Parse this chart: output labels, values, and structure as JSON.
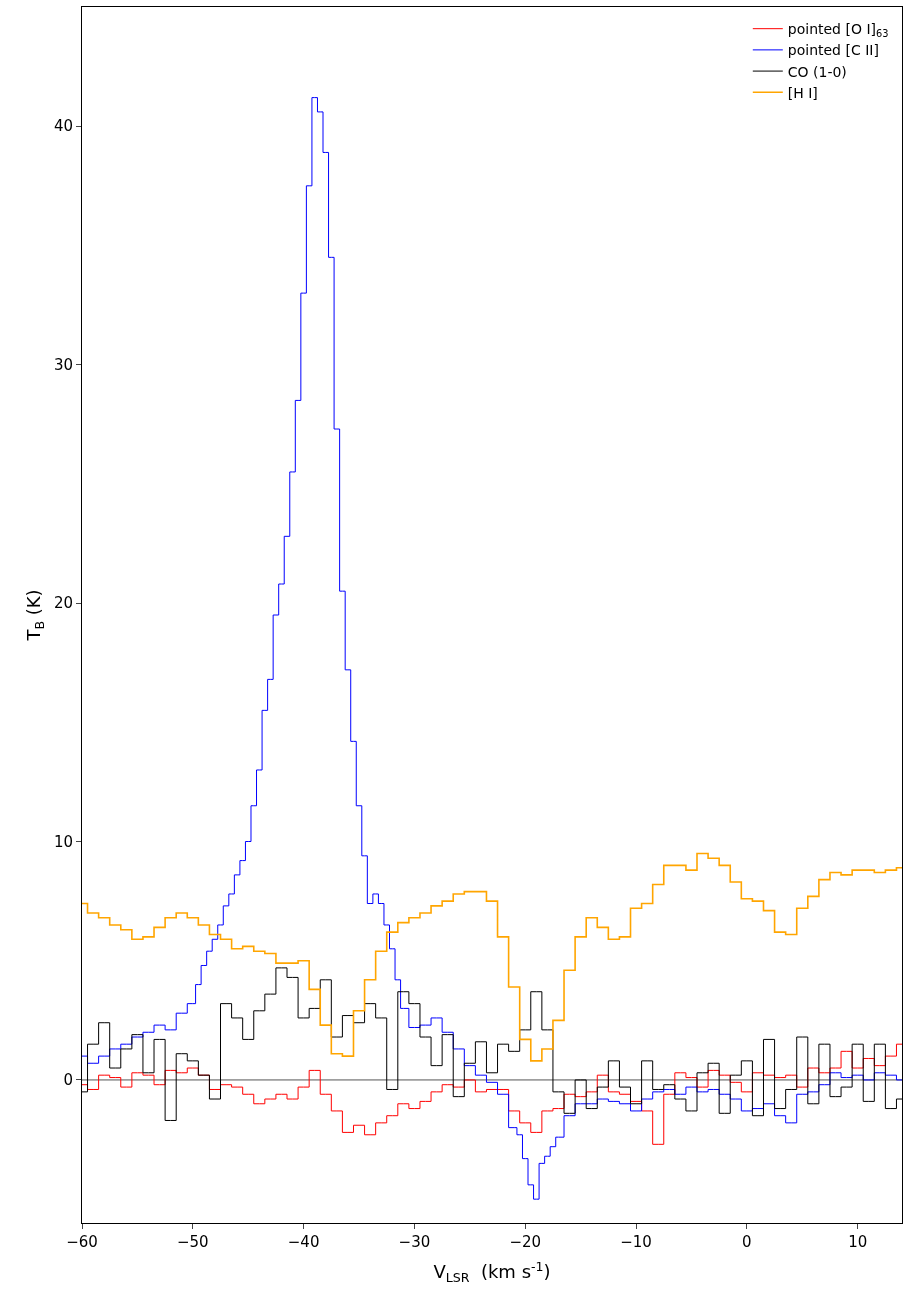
{
  "chart_data": {
    "type": "step",
    "xlabel": "V$_{LSR}$  (km s$^{-1}$)",
    "ylabel": "T$_{B}$ (K)",
    "xlim": [
      -60,
      14
    ],
    "ylim": [
      -6,
      45
    ],
    "xticks": [
      -60,
      -50,
      -40,
      -30,
      -20,
      -10,
      0,
      10
    ],
    "yticks": [
      0,
      10,
      20,
      30,
      40
    ],
    "grid": false,
    "legend": "top right",
    "marker": "none",
    "line_style": "solid",
    "ref_lines": [
      {
        "axis": "y",
        "value": 0,
        "label": null,
        "color": "#555555"
      }
    ],
    "series": [
      {
        "name": "pointed [O I]$_{63}$",
        "color": "#ff0000",
        "x": [
          -60,
          -59,
          -58,
          -57,
          -56,
          -55,
          -54,
          -53,
          -52,
          -51,
          -50,
          -49,
          -48,
          -47,
          -46,
          -45,
          -44,
          -43,
          -42,
          -41,
          -40,
          -39,
          -38,
          -37,
          -36,
          -35,
          -34,
          -33,
          -32,
          -31,
          -30,
          -29,
          -28,
          -27,
          -26,
          -25,
          -24,
          -23,
          -22,
          -21,
          -20,
          -19,
          -18,
          -17,
          -16,
          -15,
          -14,
          -13,
          -12,
          -11,
          -10,
          -9,
          -8,
          -7,
          -6,
          -5,
          -4,
          -3,
          -2,
          -1,
          0,
          1,
          2,
          3,
          4,
          5,
          6,
          7,
          8,
          9,
          10,
          11,
          12,
          13,
          14
        ],
        "values": [
          -0.2,
          -0.4,
          0.2,
          0.1,
          -0.3,
          0.3,
          0.2,
          -0.2,
          0.4,
          0.3,
          0.5,
          0.2,
          -0.4,
          -0.2,
          -0.3,
          -0.6,
          -1.0,
          -0.8,
          -0.6,
          -0.8,
          -0.3,
          0.4,
          -0.6,
          -1.3,
          -2.2,
          -1.9,
          -2.3,
          -1.8,
          -1.5,
          -1.0,
          -1.2,
          -0.9,
          -0.5,
          -0.2,
          -0.3,
          0.0,
          -0.5,
          -0.4,
          -0.4,
          -1.3,
          -1.8,
          -2.2,
          -1.3,
          -1.2,
          -0.6,
          -0.7,
          -0.5,
          0.2,
          -0.5,
          -0.6,
          -0.9,
          -1.3,
          -2.7,
          -0.6,
          0.3,
          0.1,
          -0.3,
          0.4,
          0.2,
          -0.1,
          -0.5,
          0.3,
          0.2,
          0.1,
          0.2,
          -0.3,
          0.5,
          0.3,
          0.5,
          1.2,
          0.5,
          0.9,
          0.6,
          1.0,
          1.5
        ]
      },
      {
        "name": "pointed [C II]",
        "color": "#0000ff",
        "x": [
          -60,
          -59,
          -58,
          -57,
          -56,
          -55,
          -54,
          -53,
          -52,
          -51,
          -50,
          -49.5,
          -49,
          -48.5,
          -48,
          -47.5,
          -47,
          -46.5,
          -46,
          -45.5,
          -45,
          -44.5,
          -44,
          -43.5,
          -43,
          -42.5,
          -42,
          -41.5,
          -41,
          -40.5,
          -40,
          -39.5,
          -39,
          -38.5,
          -38,
          -37.5,
          -37,
          -36.5,
          -36,
          -35.5,
          -35,
          -34.5,
          -34,
          -33.5,
          -33,
          -32.5,
          -32,
          -31.5,
          -31,
          -30,
          -29,
          -28,
          -27,
          -26,
          -25,
          -24,
          -23,
          -22,
          -21,
          -20.5,
          -20,
          -19.5,
          -19,
          -18.5,
          -18,
          -17.5,
          -17,
          -16,
          -15,
          -14,
          -13,
          -12,
          -11,
          -10,
          -9,
          -8,
          -7,
          -6,
          -5,
          -4,
          -3,
          -2,
          -1,
          0,
          1,
          2,
          3,
          4,
          5,
          6,
          7,
          8,
          9,
          10,
          11,
          12,
          13,
          14
        ],
        "values": [
          1.0,
          0.7,
          1.0,
          1.3,
          1.5,
          1.8,
          2.0,
          2.3,
          2.1,
          2.8,
          3.2,
          4.0,
          4.8,
          5.4,
          5.9,
          6.5,
          7.3,
          7.8,
          8.6,
          9.2,
          10.0,
          11.5,
          13.0,
          15.5,
          16.8,
          19.5,
          20.8,
          22.8,
          25.5,
          28.5,
          33.0,
          37.5,
          41.2,
          40.6,
          38.9,
          34.5,
          27.3,
          20.5,
          17.2,
          14.2,
          11.5,
          9.4,
          7.4,
          7.8,
          7.4,
          6.5,
          5.5,
          4.2,
          3.0,
          2.2,
          2.3,
          2.6,
          2.0,
          1.3,
          0.6,
          0.2,
          -0.1,
          -0.6,
          -2.0,
          -2.3,
          -3.3,
          -4.4,
          -5.0,
          -3.5,
          -3.2,
          -2.8,
          -2.4,
          -1.5,
          -1.0,
          -1.0,
          -0.8,
          -0.9,
          -1.0,
          -1.3,
          -0.8,
          -0.5,
          -0.4,
          -0.6,
          -0.3,
          -0.5,
          -0.4,
          -0.6,
          -0.8,
          -1.3,
          -1.2,
          -1.0,
          -1.5,
          -1.8,
          -0.6,
          -0.5,
          -0.2,
          0.3,
          0.1,
          0.2,
          0.0,
          0.3,
          0.2,
          0.0
        ]
      },
      {
        "name": "CO (1-0)",
        "color": "#000000",
        "x": [
          -60,
          -59,
          -58,
          -57,
          -56,
          -55,
          -54,
          -53,
          -52,
          -51,
          -50,
          -49,
          -48,
          -47,
          -46,
          -45,
          -44,
          -43,
          -42,
          -41,
          -40,
          -39,
          -38,
          -37,
          -36,
          -35,
          -34,
          -33,
          -32,
          -31,
          -30,
          -29,
          -28,
          -27,
          -26,
          -25,
          -24,
          -23,
          -22,
          -21,
          -20,
          -19,
          -18,
          -17,
          -16,
          -15,
          -14,
          -13,
          -12,
          -11,
          -10,
          -9,
          -8,
          -7,
          -6,
          -5,
          -4,
          -3,
          -2,
          -1,
          0,
          1,
          2,
          3,
          4,
          5,
          6,
          7,
          8,
          9,
          10,
          11,
          12,
          13,
          14
        ],
        "values": [
          -0.5,
          1.5,
          2.4,
          0.5,
          1.3,
          1.9,
          0.3,
          1.7,
          -1.7,
          1.1,
          0.8,
          0.2,
          -0.8,
          3.2,
          2.6,
          1.7,
          2.9,
          3.6,
          4.7,
          4.3,
          2.6,
          3.0,
          4.2,
          1.8,
          2.7,
          2.4,
          3.2,
          2.6,
          -0.4,
          3.7,
          3.2,
          1.8,
          0.6,
          1.9,
          -0.7,
          0.7,
          1.6,
          0.3,
          1.5,
          1.2,
          2.1,
          3.7,
          2.1,
          -0.5,
          -1.4,
          0.0,
          -1.2,
          -0.3,
          0.8,
          -0.3,
          -1.0,
          0.8,
          -0.4,
          -0.2,
          -0.8,
          -1.3,
          0.3,
          0.7,
          -1.4,
          0.2,
          0.8,
          -1.5,
          1.7,
          -1.2,
          -0.4,
          1.8,
          -1.0,
          1.5,
          -0.7,
          -0.3,
          1.5,
          -0.9,
          1.5,
          -1.2,
          -0.8
        ]
      },
      {
        "name": "[H I]",
        "color": "#ffa500",
        "x": [
          -60,
          -59,
          -58,
          -57,
          -56,
          -55,
          -54,
          -53,
          -52,
          -51,
          -50,
          -49,
          -48,
          -47,
          -46,
          -45,
          -44,
          -43,
          -42,
          -41,
          -40,
          -39,
          -38,
          -37,
          -36,
          -35,
          -34,
          -33,
          -32,
          -31,
          -30,
          -29,
          -28,
          -27,
          -26,
          -25,
          -24,
          -23,
          -22,
          -21,
          -20,
          -19,
          -18,
          -17,
          -16,
          -15,
          -14,
          -13,
          -12,
          -11,
          -10,
          -9,
          -8,
          -7,
          -6,
          -5,
          -4,
          -3,
          -2,
          -1,
          0,
          1,
          2,
          3,
          4,
          5,
          6,
          7,
          8,
          9,
          10,
          11,
          12,
          13,
          14
        ],
        "values": [
          7.4,
          7.0,
          6.8,
          6.5,
          6.3,
          5.9,
          6.0,
          6.4,
          6.8,
          7.0,
          6.8,
          6.5,
          6.1,
          5.9,
          5.5,
          5.6,
          5.4,
          5.3,
          4.9,
          4.9,
          5.0,
          3.8,
          2.3,
          1.1,
          1.0,
          2.9,
          4.2,
          5.4,
          6.2,
          6.6,
          6.8,
          7.0,
          7.3,
          7.5,
          7.8,
          7.9,
          7.9,
          7.5,
          6.0,
          3.9,
          1.7,
          0.8,
          1.3,
          2.5,
          4.6,
          6.0,
          6.8,
          6.4,
          5.9,
          6.0,
          7.2,
          7.4,
          8.2,
          9.0,
          9.0,
          8.8,
          9.5,
          9.3,
          9.0,
          8.3,
          7.6,
          7.5,
          7.1,
          6.2,
          6.1,
          7.2,
          7.7,
          8.4,
          8.7,
          8.6,
          8.8,
          8.8,
          8.7,
          8.8,
          8.9
        ]
      }
    ]
  }
}
